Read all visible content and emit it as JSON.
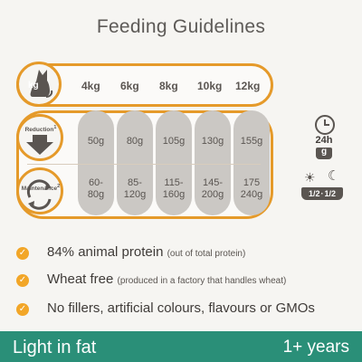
{
  "title": "Feeding Guidelines",
  "header": {
    "kg_label": "kg",
    "weights": [
      "4kg",
      "6kg",
      "8kg",
      "10kg",
      "12kg"
    ]
  },
  "rows": {
    "reduction_label": "Reduction",
    "reduction_footnote": "1",
    "maintenance_label": "Maintenance",
    "maintenance_footnote": "2",
    "reduction_values": [
      "50g",
      "80g",
      "105g",
      "130g",
      "155g"
    ],
    "maintenance_values": [
      [
        "60-",
        "80g"
      ],
      [
        "85-",
        "120g"
      ],
      [
        "115-",
        "160g"
      ],
      [
        "145-",
        "200g"
      ],
      [
        "175",
        "240g"
      ]
    ]
  },
  "side": {
    "hours": "24h",
    "grams": "g",
    "split_left": "1/2",
    "split_right": "1/2"
  },
  "features": [
    {
      "main": "84% animal protein",
      "note": "(out of total protein)"
    },
    {
      "main": "Wheat free",
      "note": "(produced in a factory that handles wheat)"
    },
    {
      "main": "No fillers, artificial colours, flavours or GMOs",
      "note": ""
    }
  ],
  "footer": {
    "left": "Light in fat",
    "right": "1+ years"
  },
  "colors": {
    "accent": "#e59a2a",
    "check": "#f2a628",
    "footer": "#2a8f78",
    "text": "#5a5551"
  }
}
